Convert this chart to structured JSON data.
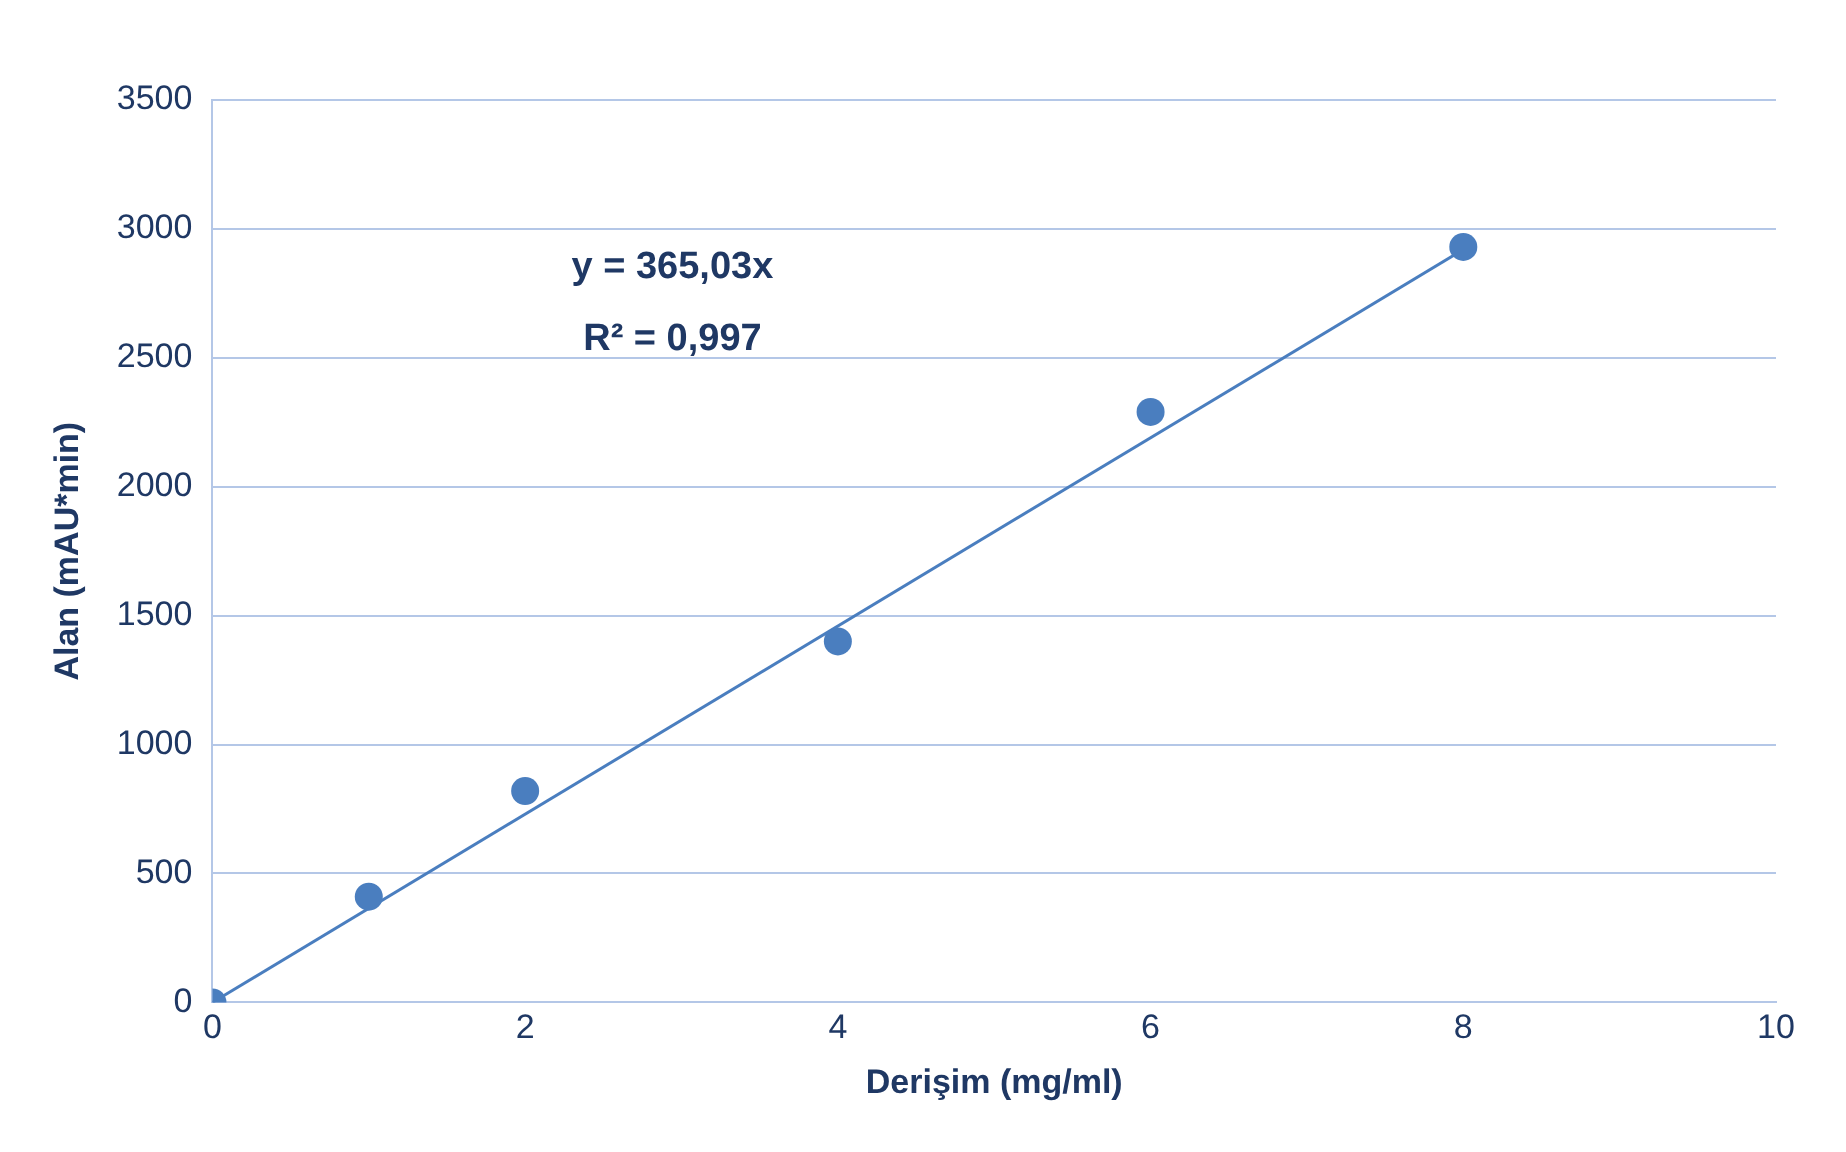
{
  "chart_data": {
    "type": "scatter",
    "xlabel": "Derişim (mg/ml)",
    "ylabel": "Alan (mAU*min)",
    "annotations": [
      "y = 365,03x",
      "R² = 0,997"
    ],
    "xlim": [
      0,
      10
    ],
    "xticks": [
      0,
      2,
      4,
      6,
      8,
      10
    ],
    "ylim": [
      0,
      3500
    ],
    "yticks": [
      0,
      500,
      1000,
      1500,
      2000,
      2500,
      3000,
      3500
    ],
    "grid": "y",
    "legend": false,
    "marker": "circle",
    "series": [
      {
        "type": "scatter",
        "color": "#4a7ebf",
        "x": [
          0,
          1,
          2,
          4,
          6,
          8
        ],
        "values": [
          0,
          410,
          820,
          1400,
          2290,
          2930
        ]
      },
      {
        "type": "line",
        "color": "#4a7ebf",
        "x": [
          0,
          8
        ],
        "values": [
          0,
          2920
        ],
        "marker": "none",
        "line_style": "solid"
      }
    ]
  }
}
